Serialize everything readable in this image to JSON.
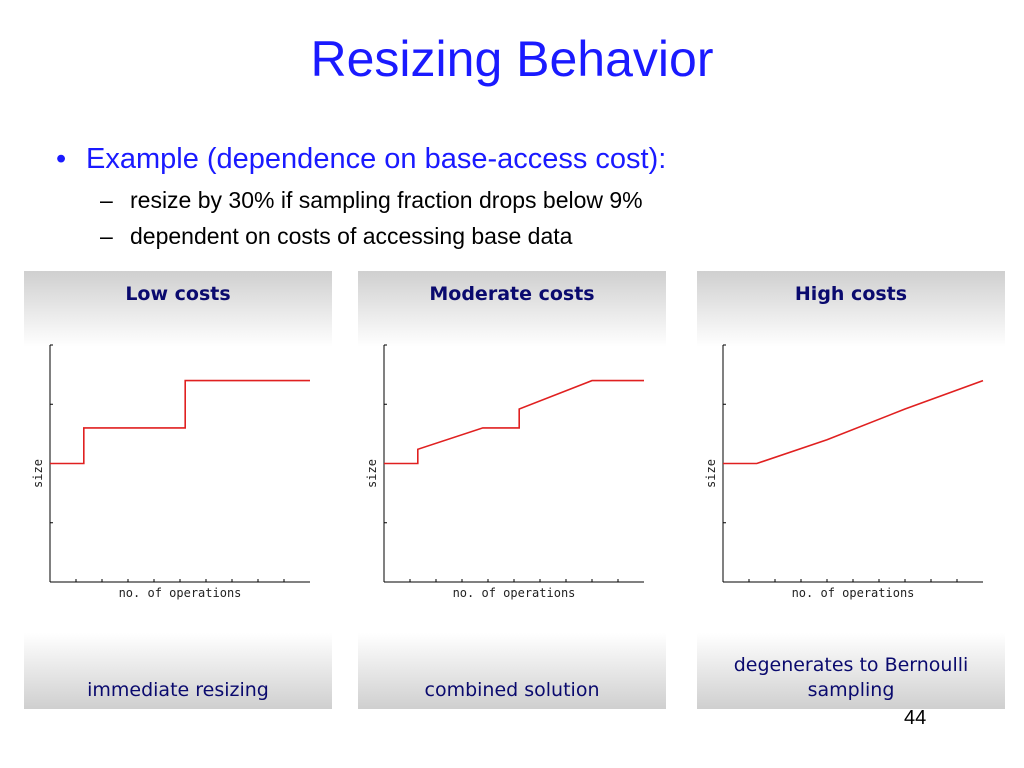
{
  "slide": {
    "title": "Resizing Behavior",
    "page_number": "44",
    "bullet": {
      "marker": "•",
      "text": "Example (dependence on base-access cost):",
      "subitems": [
        {
          "marker": "–",
          "text": "resize by 30% if sampling fraction drops below 9%"
        },
        {
          "marker": "–",
          "text": "dependent on costs of accessing base data"
        }
      ]
    }
  },
  "colors": {
    "title": "#1a1aff",
    "panel_text": "#0a0a6e",
    "line": "#e02020"
  },
  "chart_data": [
    {
      "type": "line",
      "panel_title": "Low costs",
      "caption": "immediate resizing",
      "xlabel": "no. of operations",
      "ylabel": "size",
      "xlim": [
        0,
        10
      ],
      "ylim": [
        0,
        10
      ],
      "grid": false,
      "series": [
        {
          "x": [
            0,
            1.3,
            1.3,
            5.2,
            5.2,
            10
          ],
          "y": [
            5.0,
            5.0,
            6.5,
            6.5,
            8.5,
            8.5
          ]
        }
      ]
    },
    {
      "type": "line",
      "panel_title": "Moderate costs",
      "caption": "combined solution",
      "xlabel": "no. of operations",
      "ylabel": "size",
      "xlim": [
        0,
        10
      ],
      "ylim": [
        0,
        10
      ],
      "grid": false,
      "series": [
        {
          "x": [
            0,
            1.3,
            1.3,
            3.8,
            5.2,
            5.2,
            8.0,
            10
          ],
          "y": [
            5.0,
            5.0,
            5.6,
            6.5,
            6.5,
            7.3,
            8.5,
            8.5
          ]
        }
      ]
    },
    {
      "type": "line",
      "panel_title": "High costs",
      "caption": "degenerates to Bernoulli sampling",
      "xlabel": "no. of operations",
      "ylabel": "size",
      "xlim": [
        0,
        10
      ],
      "ylim": [
        0,
        10
      ],
      "grid": false,
      "series": [
        {
          "x": [
            0,
            1.3,
            4.0,
            7.0,
            10
          ],
          "y": [
            5.0,
            5.0,
            6.0,
            7.3,
            8.5
          ]
        }
      ]
    }
  ]
}
